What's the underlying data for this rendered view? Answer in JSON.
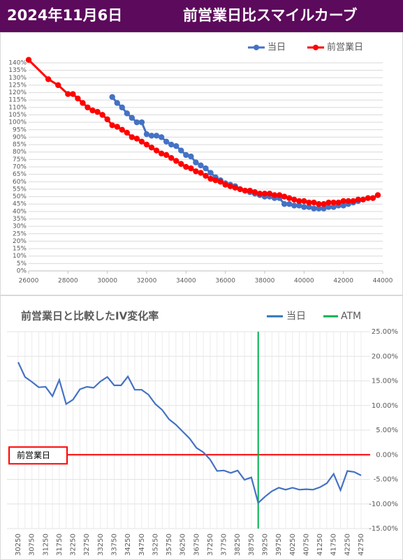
{
  "header": {
    "date": "2024年11月6日",
    "title": "前営業日比スマイルカーブ"
  },
  "chart_data": [
    {
      "type": "scatter-line",
      "xlim": [
        26000,
        44000
      ],
      "xticks": [
        26000,
        28000,
        30000,
        32000,
        34000,
        36000,
        38000,
        40000,
        42000,
        44000
      ],
      "ylim": [
        0,
        140
      ],
      "yticks": [
        {
          "value": 0,
          "label": "0%"
        },
        {
          "value": 5,
          "label": "5%"
        },
        {
          "value": 10,
          "label": "10%"
        },
        {
          "value": 15,
          "label": "15%"
        },
        {
          "value": 20,
          "label": "20%"
        },
        {
          "value": 25,
          "label": "25%"
        },
        {
          "value": 30,
          "label": "30%"
        },
        {
          "value": 35,
          "label": "35%"
        },
        {
          "value": 40,
          "label": "40%"
        },
        {
          "value": 45,
          "label": "45%"
        },
        {
          "value": 50,
          "label": "50%"
        },
        {
          "value": 55,
          "label": "55%"
        },
        {
          "value": 60,
          "label": "60%"
        },
        {
          "value": 65,
          "label": "65%"
        },
        {
          "value": 70,
          "label": "70%"
        },
        {
          "value": 75,
          "label": "75%"
        },
        {
          "value": 80,
          "label": "80%"
        },
        {
          "value": 85,
          "label": "85%"
        },
        {
          "value": 90,
          "label": "90%"
        },
        {
          "value": 95,
          "label": "95%"
        },
        {
          "value": 100,
          "label": "100%"
        },
        {
          "value": 105,
          "label": "105%"
        },
        {
          "value": 110,
          "label": "110%"
        },
        {
          "value": 115,
          "label": "115%"
        },
        {
          "value": 120,
          "label": "120%"
        },
        {
          "value": 125,
          "label": "125%"
        },
        {
          "value": 130,
          "label": "130%"
        },
        {
          "value": 135,
          "label": "135%"
        },
        {
          "value": 140,
          "label": "140%"
        }
      ],
      "grid": true,
      "legend": "top-right",
      "series": [
        {
          "name": "当日",
          "color": "#4472c4",
          "x": [
            30250,
            30500,
            30750,
            31000,
            31250,
            31500,
            31750,
            32000,
            32250,
            32500,
            32750,
            33000,
            33250,
            33500,
            33750,
            34000,
            34250,
            34500,
            34750,
            35000,
            35250,
            35500,
            35750,
            36000,
            36250,
            36500,
            36750,
            37000,
            37250,
            37500,
            37750,
            38000,
            38250,
            38500,
            38750,
            39000,
            39250,
            39500,
            39750,
            40000,
            40250,
            40500,
            40750,
            41000,
            41250,
            41500,
            41750,
            42000,
            42250,
            42500,
            42750
          ],
          "values": [
            117,
            113,
            110,
            106,
            103,
            100,
            100,
            92,
            91,
            91,
            90,
            87,
            85,
            84,
            81,
            78,
            77,
            73,
            71,
            69,
            66,
            63,
            61,
            59,
            58,
            57,
            55,
            54,
            53,
            52,
            51,
            50,
            50,
            49,
            49,
            45,
            45,
            44,
            44,
            43,
            43,
            42,
            42,
            42,
            43,
            43,
            44,
            44,
            45,
            46,
            47
          ]
        },
        {
          "name": "前営業日",
          "color": "#ff0000",
          "x": [
            26000,
            27000,
            27500,
            28000,
            28250,
            28500,
            28750,
            29000,
            29250,
            29500,
            29750,
            30000,
            30250,
            30500,
            30750,
            31000,
            31250,
            31500,
            31750,
            32000,
            32250,
            32500,
            32750,
            33000,
            33250,
            33500,
            33750,
            34000,
            34250,
            34500,
            34750,
            35000,
            35250,
            35500,
            35750,
            36000,
            36250,
            36500,
            36750,
            37000,
            37250,
            37500,
            37750,
            38000,
            38250,
            38500,
            38750,
            39000,
            39250,
            39500,
            39750,
            40000,
            40250,
            40500,
            40750,
            41000,
            41250,
            41500,
            41750,
            42000,
            42250,
            42500,
            42750,
            43000,
            43250,
            43500,
            43750
          ],
          "values": [
            142,
            129,
            125,
            119,
            119,
            116,
            113,
            110,
            108,
            107,
            105,
            102,
            98,
            97,
            95,
            93,
            90,
            89,
            87,
            85,
            83,
            81,
            79,
            78,
            76,
            74,
            72,
            70,
            69,
            67,
            66,
            64,
            62,
            61,
            60,
            58,
            57,
            56,
            55,
            54,
            54,
            53,
            52,
            52,
            52,
            51,
            51,
            50,
            49,
            48,
            47,
            47,
            46,
            46,
            45,
            45,
            46,
            46,
            46,
            47,
            47,
            47,
            48,
            48,
            49,
            49,
            51
          ]
        }
      ]
    },
    {
      "type": "line",
      "title": "前営業日と比較したIV変化率",
      "categories": [
        30250,
        null,
        30750,
        null,
        31250,
        null,
        31750,
        null,
        32250,
        null,
        32750,
        null,
        33250,
        null,
        33750,
        null,
        34250,
        null,
        34750,
        null,
        35250,
        null,
        35750,
        null,
        36250,
        null,
        36750,
        null,
        37250,
        null,
        37750,
        null,
        38250,
        null,
        38750,
        null,
        39250,
        null,
        39750,
        null,
        40250,
        null,
        40750,
        null,
        41250,
        null,
        41750,
        null,
        42250,
        null,
        42750
      ],
      "y2lim": [
        -15,
        25
      ],
      "y2ticks": [
        {
          "value": 25,
          "label": "25.00%"
        },
        {
          "value": 20,
          "label": "20.00%"
        },
        {
          "value": 15,
          "label": "15.00%"
        },
        {
          "value": 10,
          "label": "10.00%"
        },
        {
          "value": 5,
          "label": "5.00%"
        },
        {
          "value": 0,
          "label": "0.00%"
        },
        {
          "value": -5,
          "label": "-5.00%"
        },
        {
          "value": -10,
          "label": "-10.00%"
        },
        {
          "value": -15,
          "label": "-15.00%"
        }
      ],
      "grid": true,
      "legend": "top-right",
      "series": [
        {
          "name": "当日",
          "color": "#4472c4",
          "axis": "y2",
          "values": [
            18.8,
            15.8,
            14.8,
            13.7,
            13.8,
            11.9,
            15.2,
            10.3,
            11.2,
            13.3,
            13.8,
            13.6,
            14.9,
            15.8,
            14.1,
            14.1,
            15.9,
            13.2,
            13.2,
            12.2,
            10.3,
            9.1,
            7.2,
            6.1,
            4.7,
            3.3,
            1.4,
            0.5,
            -1.0,
            -3.3,
            -3.2,
            -3.7,
            -3.2,
            -5.1,
            -4.6,
            -9.8,
            -8.5,
            -7.4,
            -6.7,
            -7.1,
            -6.7,
            -7.1,
            -7.0,
            -7.1,
            -6.6,
            -5.8,
            -3.9,
            -7.2,
            -3.3,
            -3.5,
            -4.2
          ]
        }
      ],
      "legend_series_color": "#2e75b6",
      "atm": {
        "name": "ATM",
        "color": "#00b050",
        "x": 39000
      },
      "reference_line": {
        "label": "前営業日",
        "color": "#ff0000",
        "value": 0
      }
    }
  ]
}
